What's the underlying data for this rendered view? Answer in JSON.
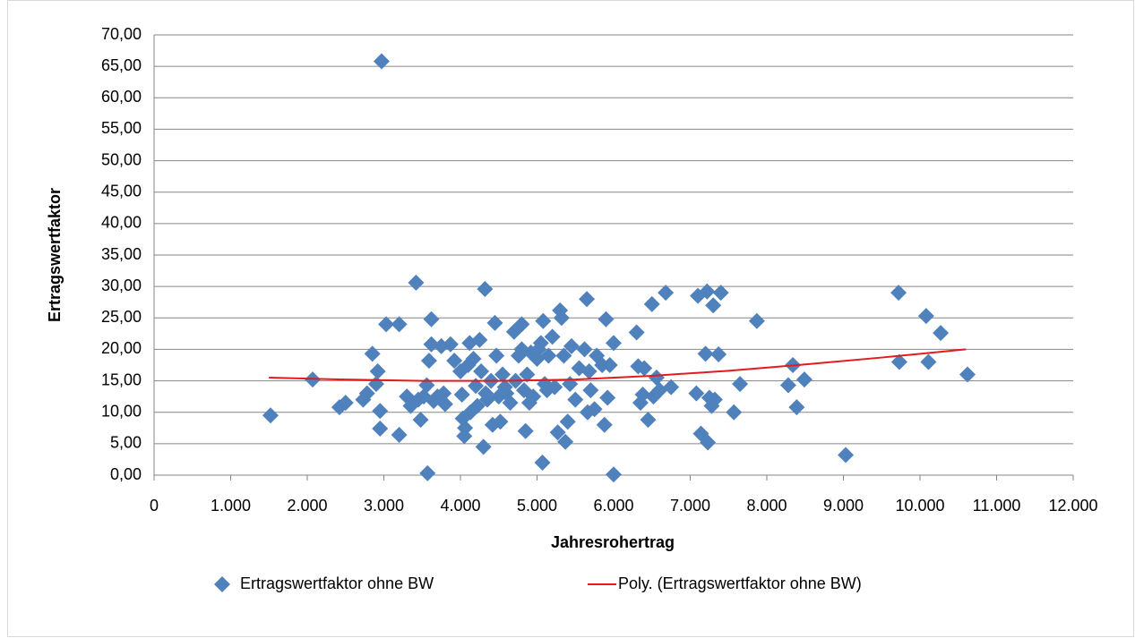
{
  "chart_data": {
    "type": "scatter",
    "x_label": "Jahresrohertrag",
    "y_label": "Ertragswertfaktor",
    "xlim": [
      0,
      12000
    ],
    "xticks": [
      0,
      {
        "value": 1000,
        "label": "1.000"
      },
      {
        "value": 2000,
        "label": "2.000"
      },
      {
        "value": 3000,
        "label": "3.000"
      },
      {
        "value": 4000,
        "label": "4.000"
      },
      {
        "value": 5000,
        "label": "5.000"
      },
      {
        "value": 6000,
        "label": "6.000"
      },
      {
        "value": 7000,
        "label": "7.000"
      },
      {
        "value": 8000,
        "label": "8.000"
      },
      {
        "value": 9000,
        "label": "9.000"
      },
      {
        "value": 10000,
        "label": "10.000"
      },
      {
        "value": 11000,
        "label": "11.000"
      },
      {
        "value": 12000,
        "label": "12.000"
      }
    ],
    "ylim": [
      0,
      70
    ],
    "yticks": [
      {
        "value": 0,
        "label": "0,00"
      },
      {
        "value": 5,
        "label": "5,00"
      },
      {
        "value": 10,
        "label": "10,00"
      },
      {
        "value": 15,
        "label": "15,00"
      },
      {
        "value": 20,
        "label": "20,00"
      },
      {
        "value": 25,
        "label": "25,00"
      },
      {
        "value": 30,
        "label": "30,00"
      },
      {
        "value": 35,
        "label": "35,00"
      },
      {
        "value": 40,
        "label": "40,00"
      },
      {
        "value": 45,
        "label": "45,00"
      },
      {
        "value": 50,
        "label": "50,00"
      },
      {
        "value": 55,
        "label": "55,00"
      },
      {
        "value": 60,
        "label": "60,00"
      },
      {
        "value": 65,
        "label": "65,00"
      },
      {
        "value": 70,
        "label": "70,00"
      }
    ],
    "grid": true,
    "legend": "bottom",
    "series": [
      {
        "name": "Ertragswertfaktor ohne BW",
        "type": "scatter",
        "color": "#4f81bd",
        "x": [
          1520,
          2070,
          2420,
          2500,
          2730,
          2780,
          2850,
          2900,
          2920,
          2950,
          2950,
          2970,
          3030,
          3200,
          3200,
          3300,
          3350,
          3420,
          3450,
          3480,
          3520,
          3560,
          3570,
          3590,
          3620,
          3620,
          3650,
          3700,
          3750,
          3780,
          3800,
          3870,
          3920,
          4000,
          4020,
          4030,
          4050,
          4060,
          4100,
          4120,
          4130,
          4170,
          4200,
          4220,
          4250,
          4270,
          4300,
          4320,
          4330,
          4350,
          4400,
          4420,
          4450,
          4470,
          4500,
          4520,
          4550,
          4580,
          4600,
          4650,
          4700,
          4720,
          4760,
          4800,
          4800,
          4830,
          4850,
          4870,
          4900,
          4920,
          4950,
          5000,
          5020,
          5050,
          5070,
          5080,
          5100,
          5130,
          5150,
          5200,
          5230,
          5270,
          5300,
          5320,
          5350,
          5370,
          5400,
          5430,
          5450,
          5500,
          5550,
          5620,
          5650,
          5660,
          5680,
          5700,
          5750,
          5780,
          5850,
          5880,
          5900,
          5920,
          5950,
          6000,
          6000,
          6300,
          6320,
          6350,
          6380,
          6400,
          6450,
          6500,
          6520,
          6560,
          6600,
          6680,
          6750,
          7080,
          7100,
          7140,
          7200,
          7220,
          7230,
          7250,
          7280,
          7300,
          7320,
          7370,
          7400,
          7570,
          7650,
          7870,
          8280,
          8340,
          8390,
          8490,
          9030,
          9720,
          9730,
          10080,
          10110,
          10270,
          10620
        ],
        "values": [
          9.5,
          15.2,
          10.8,
          11.5,
          12,
          13,
          19.3,
          14.5,
          16.5,
          10.2,
          7.4,
          65.8,
          24,
          6.4,
          24,
          12.5,
          11,
          30.6,
          12,
          8.8,
          12.5,
          14.3,
          0.3,
          18.2,
          24.8,
          20.8,
          11.8,
          12.5,
          20.5,
          13,
          11.3,
          20.8,
          18.2,
          16.5,
          12.8,
          9,
          6.2,
          7.5,
          17.5,
          21,
          10,
          18.5,
          14.2,
          11,
          21.5,
          16.5,
          4.5,
          29.6,
          13,
          12,
          15,
          8,
          24.2,
          19,
          12.5,
          8.5,
          16,
          14,
          13,
          11.5,
          22.8,
          15,
          19,
          24,
          20,
          13.5,
          7,
          16,
          11.5,
          19.5,
          12.5,
          18.5,
          20,
          21,
          2,
          24.5,
          14.5,
          13.5,
          19,
          22,
          14,
          6.8,
          26.2,
          25,
          19,
          5.3,
          8.5,
          14.5,
          20.5,
          12,
          17,
          20,
          28,
          10,
          16.5,
          13.5,
          10.5,
          19,
          17.5,
          8,
          24.8,
          12.3,
          17.5,
          21,
          0.1,
          22.7,
          17.3,
          11.5,
          12.8,
          17,
          8.8,
          27.2,
          12.5,
          15.5,
          13.5,
          29,
          14,
          13,
          28.5,
          6.6,
          19.3,
          29.2,
          5.2,
          12.3,
          11,
          27,
          12,
          19.2,
          29,
          10,
          14.5,
          24.5,
          14.3,
          17.5,
          10.8,
          15.2,
          3.2,
          29,
          18,
          25.3,
          18,
          22.6,
          16
        ]
      },
      {
        "name": "Poly. (Ertragswertfaktor ohne BW)",
        "type": "line",
        "color": "#e41a1c",
        "x": [
          1500,
          2500,
          3500,
          4500,
          5500,
          6500,
          7500,
          8500,
          9500,
          10600
        ],
        "values": [
          15.5,
          15.2,
          15.0,
          15.0,
          15.2,
          15.8,
          16.6,
          17.6,
          18.7,
          20.0
        ]
      }
    ]
  }
}
